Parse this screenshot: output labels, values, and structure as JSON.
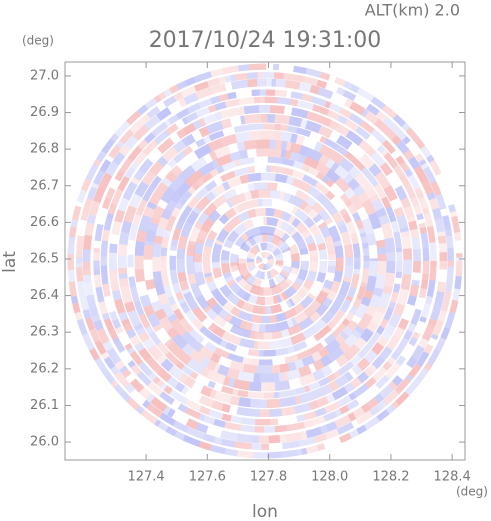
{
  "chart_data": {
    "type": "radar-ppi",
    "title": "2017/10/24 19:31:00",
    "subtitle": "ALT(km) 2.0",
    "x_label": "lon",
    "y_label": "lat",
    "x_unit": "(deg)",
    "y_unit": "(deg)",
    "xlim": [
      127.135,
      128.442
    ],
    "ylim": [
      25.951,
      27.038
    ],
    "xticks": [
      127.4,
      127.6,
      127.8,
      {
        "value": 128,
        "label": "128.0"
      },
      128.2,
      128.4
    ],
    "yticks": [
      {
        "value": 26,
        "label": "26.0"
      },
      26.1,
      26.2,
      26.3,
      26.4,
      26.5,
      26.6,
      26.7,
      26.8,
      26.9,
      {
        "value": 27,
        "label": "27.0"
      }
    ]
  }
}
